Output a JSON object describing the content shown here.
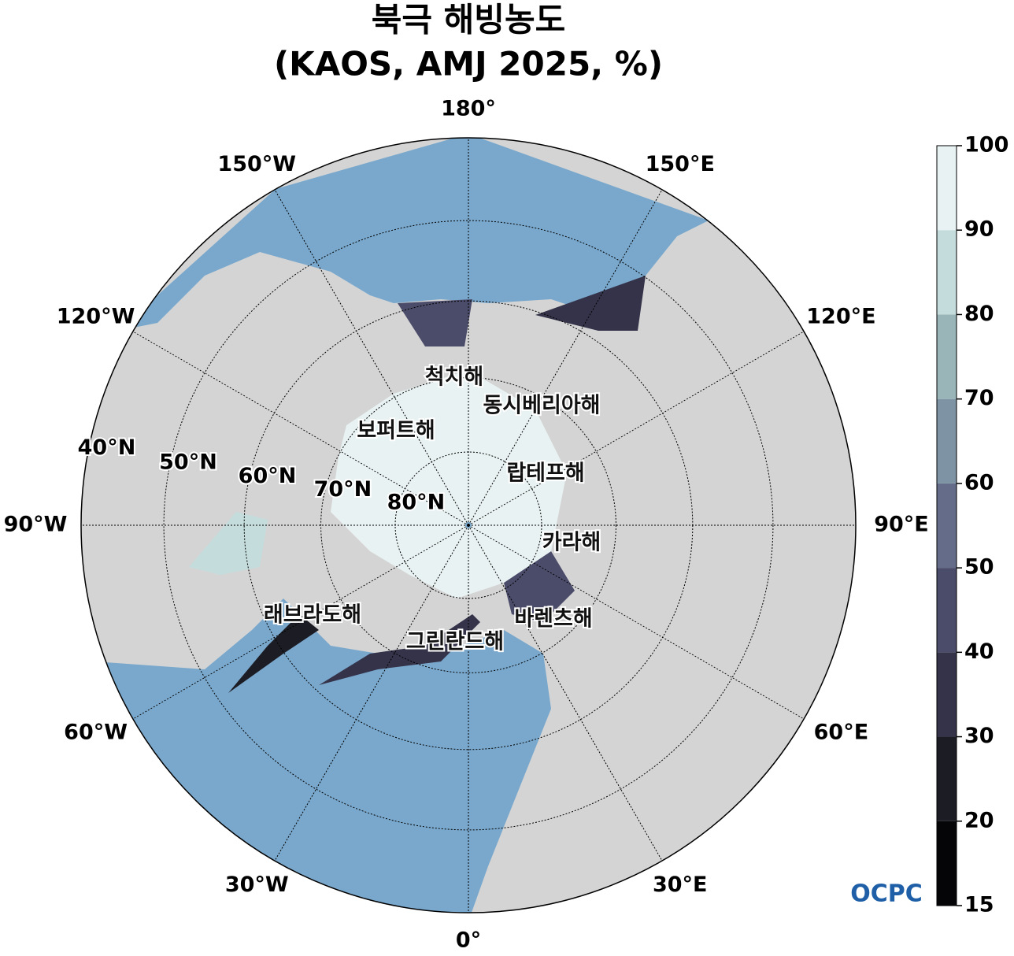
{
  "title": [
    "북극 해빙농도",
    "(KAOS, AMJ 2025, %)"
  ],
  "meridians": [
    {
      "value": 180,
      "label": "180°"
    },
    {
      "value": 150,
      "label": "150°E"
    },
    {
      "value": 120,
      "label": "120°E"
    },
    {
      "value": 90,
      "label": "90°E"
    },
    {
      "value": 60,
      "label": "60°E"
    },
    {
      "value": 30,
      "label": "30°E"
    },
    {
      "value": 0,
      "label": "0°"
    },
    {
      "value": -30,
      "label": "30°W"
    },
    {
      "value": -60,
      "label": "60°W"
    },
    {
      "value": -90,
      "label": "90°W"
    },
    {
      "value": -120,
      "label": "120°W"
    },
    {
      "value": -150,
      "label": "150°W"
    }
  ],
  "parallels": [
    {
      "value": 80,
      "label": "80°N"
    },
    {
      "value": 70,
      "label": "70°N"
    },
    {
      "value": 60,
      "label": "60°N"
    },
    {
      "value": 50,
      "label": "50°N"
    },
    {
      "value": 40,
      "label": "40°N"
    }
  ],
  "seas": [
    "척치해",
    "동시베리아해",
    "보퍼트해",
    "랍테프해",
    "카라해",
    "래브라도해",
    "바렌츠해",
    "그린란드해"
  ],
  "colorbar": {
    "levels": [
      15,
      20,
      30,
      40,
      50,
      60,
      70,
      80,
      90,
      100
    ],
    "colors": [
      "#050507",
      "#1c1c24",
      "#34334a",
      "#4b4b6a",
      "#646c8a",
      "#7e94a5",
      "#99b5b8",
      "#c4dcdc",
      "#e9f2f2"
    ]
  },
  "logo": "OCPC"
}
